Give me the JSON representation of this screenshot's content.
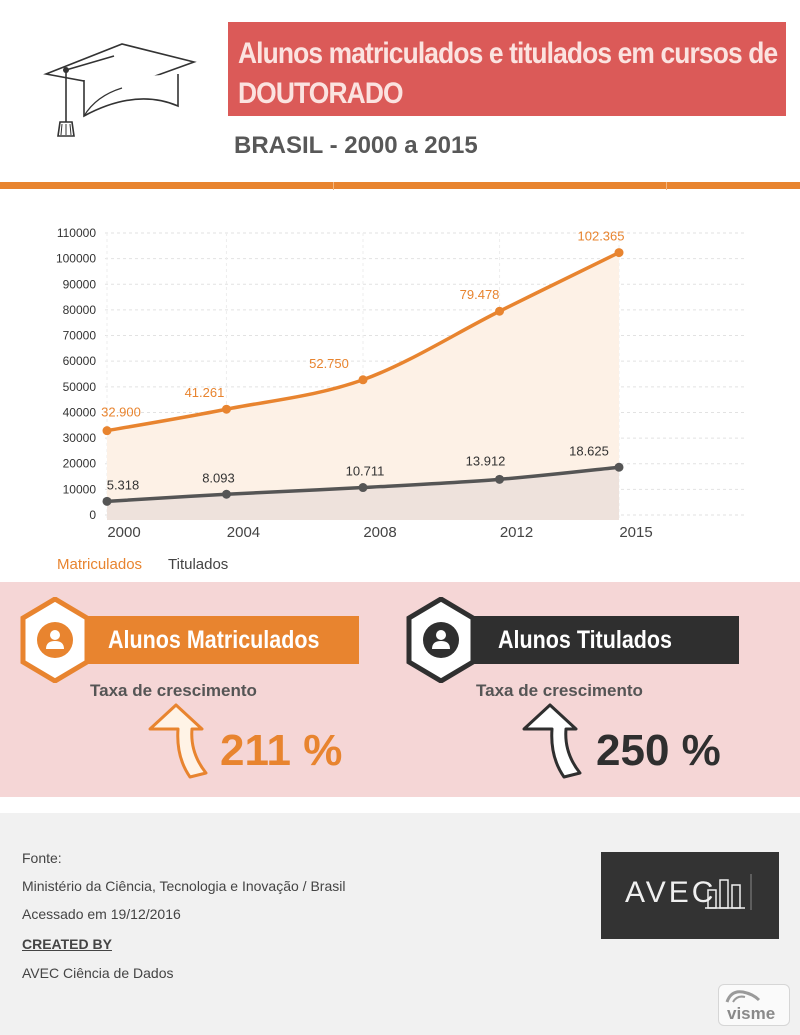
{
  "header": {
    "title_line1": "Alunos matriculados e titulados em cursos de",
    "title_line2": "DOUTORADO",
    "subtitle": "BRASIL - 2000 a 2015"
  },
  "colors": {
    "accent_orange": "#e8842f",
    "title_red": "#db5a58",
    "dark_gray": "#484848",
    "stats_bg": "#f5d6d6"
  },
  "chart_data": {
    "type": "area",
    "x": [
      2000,
      2003.5,
      2007.5,
      2011.5,
      2015
    ],
    "x_ticks": [
      "2000",
      "2004",
      "2008",
      "2012",
      "2015"
    ],
    "ylim": [
      0,
      110000
    ],
    "y_ticks": [
      "0",
      "10000",
      "20000",
      "30000",
      "40000",
      "50000",
      "60000",
      "70000",
      "80000",
      "90000",
      "100000",
      "110000"
    ],
    "grid": true,
    "legend": "bottom-left",
    "series": [
      {
        "name": "Matriculados",
        "values": [
          32900,
          41261,
          52750,
          79478,
          102365
        ],
        "labels": [
          "32.900",
          "41.261",
          "52.750",
          "79.478",
          "102.365"
        ],
        "color": "#e8842f"
      },
      {
        "name": "Titulados",
        "values": [
          5318,
          8093,
          10711,
          13912,
          18625
        ],
        "labels": [
          "5.318",
          "8.093",
          "10.711",
          "13.912",
          "18.625"
        ],
        "color": "#555555"
      }
    ]
  },
  "stats": {
    "matriculados": {
      "title": "Alunos Matriculados",
      "rate_label": "Taxa de crescimento",
      "rate_value": "211 %",
      "icon": "user-icon"
    },
    "titulados": {
      "title": "Alunos Titulados",
      "rate_label": "Taxa de crescimento",
      "rate_value": "250 %",
      "icon": "user-icon"
    }
  },
  "footer": {
    "fonte_label": "Fonte:",
    "source": "Ministério da Ciência, Tecnologia e Inovação / Brasil",
    "accessed": "Acessado em 19/12/2016",
    "created_by_label": "CREATED BY",
    "creator": "AVEC Ciência de Dados",
    "logo_text": "AVEC",
    "visme_text": "visme"
  }
}
